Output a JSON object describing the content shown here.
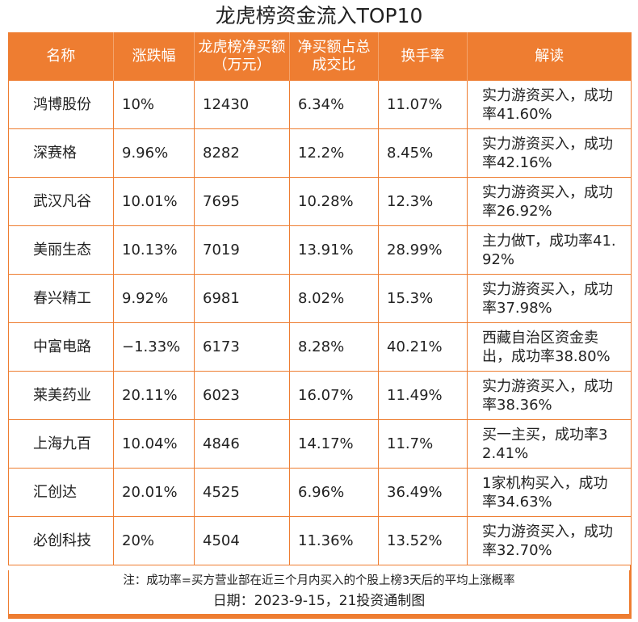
{
  "title": "龙虎榜资金流入TOP10",
  "table": {
    "headers": [
      "名称",
      "涨跌幅",
      "龙虎榜净买额（万元）",
      "净买额占总成交比",
      "换手率",
      "解读"
    ],
    "rows": [
      [
        "鸿博股份",
        "10%",
        "12430",
        "6.34%",
        "11.07%",
        "实力游资买入，成功率41.60%"
      ],
      [
        "深赛格",
        "9.96%",
        "8282",
        "12.2%",
        "8.45%",
        "实力游资买入，成功率42.16%"
      ],
      [
        "武汉凡谷",
        "10.01%",
        "7695",
        "10.28%",
        "12.3%",
        "实力游资买入，成功率26.92%"
      ],
      [
        "美丽生态",
        "10.13%",
        "7019",
        "13.91%",
        "28.99%",
        "主力做T，成功率41.92%"
      ],
      [
        "春兴精工",
        "9.92%",
        "6981",
        "8.02%",
        "15.3%",
        "实力游资买入，成功率37.98%"
      ],
      [
        "中富电路",
        "−1.33%",
        "6173",
        "8.28%",
        "40.21%",
        "西藏自治区资金卖出，成功率38.80%"
      ],
      [
        "莱美药业",
        "20.11%",
        "6023",
        "16.07%",
        "11.49%",
        "实力游资买入，成功率38.36%"
      ],
      [
        "上海九百",
        "10.04%",
        "4846",
        "14.17%",
        "11.7%",
        "买一主买，成功率32.41%"
      ],
      [
        "汇创达",
        "20.01%",
        "4525",
        "6.96%",
        "36.49%",
        "1家机构买入，成功率34.63%"
      ],
      [
        "必创科技",
        "20%",
        "4504",
        "11.36%",
        "13.52%",
        "实力游资买入，成功率32.70%"
      ]
    ]
  },
  "footnote": "注：成功率=买方营业部在近三个月内买入的个股上榜3天后的平均上涨概率",
  "dateline": "日期：2023-9-15，21投资通制图",
  "colors": {
    "accent": "#ee7d31",
    "header_text": "#ffffff"
  }
}
